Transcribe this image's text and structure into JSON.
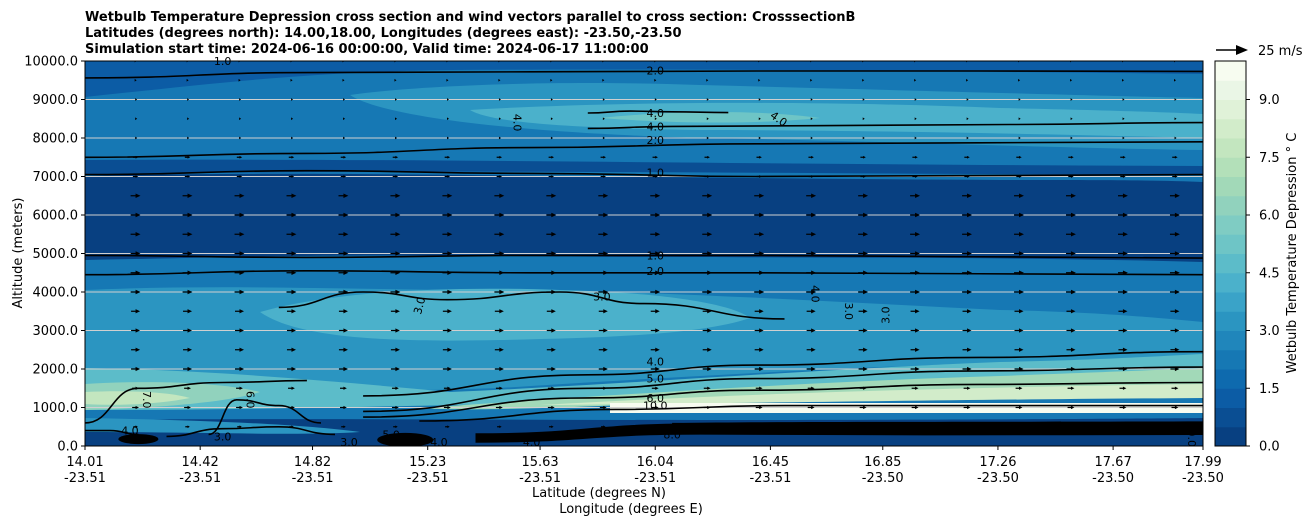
{
  "chart_data": {
    "type": "heatmap",
    "title_lines": [
      "Wetbulb Temperature Depression cross section and wind vectors parallel to cross section: CrosssectionB",
      "Latitudes (degrees north): 14.00,18.00, Longitudes (degrees east): -23.50,-23.50",
      "Simulation start time: 2024-06-16 00:00:00, Valid time: 2024-06-17 11:00:00"
    ],
    "ylabel": "Altitude (meters)",
    "xlabel_lines": [
      "Latitude (degrees N)",
      "Longitude (degrees E)"
    ],
    "ylim": [
      0,
      10000
    ],
    "yticks": [
      0,
      1000,
      2000,
      3000,
      4000,
      5000,
      6000,
      7000,
      8000,
      9000,
      10000
    ],
    "ytick_labels": [
      "0.0",
      "1000.0",
      "2000.0",
      "3000.0",
      "4000.0",
      "5000.0",
      "6000.0",
      "7000.0",
      "8000.0",
      "9000.0",
      "10000.0"
    ],
    "xlim": [
      14.01,
      17.99
    ],
    "xticks": [
      {
        "lat": "14.01",
        "lon": "-23.51"
      },
      {
        "lat": "14.42",
        "lon": "-23.51"
      },
      {
        "lat": "14.82",
        "lon": "-23.51"
      },
      {
        "lat": "15.23",
        "lon": "-23.51"
      },
      {
        "lat": "15.63",
        "lon": "-23.51"
      },
      {
        "lat": "16.04",
        "lon": "-23.51"
      },
      {
        "lat": "16.45",
        "lon": "-23.51"
      },
      {
        "lat": "16.85",
        "lon": "-23.50"
      },
      {
        "lat": "17.26",
        "lon": "-23.50"
      },
      {
        "lat": "17.67",
        "lon": "-23.50"
      },
      {
        "lat": "17.99",
        "lon": "-23.50"
      }
    ],
    "colorbar": {
      "label": "Wetbulb Temperature Depression ° C",
      "range": [
        0,
        10
      ],
      "levels": 20,
      "ticks": [
        "0.0",
        "1.5",
        "3.0",
        "4.5",
        "6.0",
        "7.5",
        "9.0"
      ],
      "colors": [
        "#084081",
        "#0a4e93",
        "#0c5ca5",
        "#0e6aae",
        "#1678b4",
        "#2086bb",
        "#2b95c1",
        "#3aa3c8",
        "#4bb1cb",
        "#5cbcc9",
        "#6ec5c6",
        "#7fccc3",
        "#91d2bd",
        "#a2d9b8",
        "#b3e0b9",
        "#c3e6bf",
        "#d2ecca",
        "#e0f2d8",
        "#eaf6e6",
        "#f7fcf0"
      ]
    },
    "quiver_key": "25 m/s",
    "contours": [
      {
        "label": "2.0",
        "y": [
          9560,
          9700,
          9720,
          9740,
          9740,
          9730
        ],
        "x": [
          14.01,
          14.8,
          15.6,
          16.4,
          17.2,
          17.99
        ]
      },
      {
        "label": "4.0",
        "y": [
          8650,
          8700,
          8680,
          8660
        ],
        "x": [
          15.8,
          15.95,
          16.1,
          16.3
        ]
      },
      {
        "label": "4.0",
        "y": [
          8250,
          8300,
          8320,
          8350,
          8400
        ],
        "x": [
          15.8,
          16.1,
          16.6,
          17.3,
          17.99
        ]
      },
      {
        "label": "2.0",
        "y": [
          7500,
          7600,
          7750,
          7850,
          7900
        ],
        "x": [
          14.01,
          14.8,
          15.6,
          16.4,
          17.99
        ]
      },
      {
        "label": "1.0",
        "y": [
          7050,
          7150,
          7080,
          7000,
          7050
        ],
        "x": [
          14.01,
          14.8,
          15.6,
          16.4,
          17.99
        ]
      },
      {
        "label": "1.0",
        "y": [
          4950,
          4900,
          4950,
          4950,
          4880
        ],
        "x": [
          14.01,
          14.8,
          15.6,
          16.4,
          17.99
        ]
      },
      {
        "label": "2.0",
        "y": [
          4450,
          4550,
          4500,
          4500,
          4450
        ],
        "x": [
          14.01,
          14.8,
          15.6,
          16.4,
          17.99
        ]
      },
      {
        "label": "3.0",
        "y": [
          3600,
          4000,
          3800,
          4000,
          3700,
          3300
        ],
        "x": [
          14.7,
          15.0,
          15.3,
          15.7,
          16.0,
          16.5
        ]
      },
      {
        "label": "4.0",
        "y": [
          1300,
          1850,
          2100,
          2300,
          2450
        ],
        "x": [
          15.0,
          15.8,
          16.4,
          17.2,
          17.99
        ]
      },
      {
        "label": "5.0",
        "y": [
          900,
          1500,
          1750,
          1950,
          2050
        ],
        "x": [
          15.0,
          15.8,
          16.4,
          17.2,
          17.99
        ]
      },
      {
        "label": "6.0",
        "y": [
          750,
          1250,
          1450,
          1600,
          1650
        ],
        "x": [
          15.0,
          15.8,
          16.4,
          17.2,
          17.99
        ]
      },
      {
        "label": "10.0",
        "y": [
          650,
          950,
          1050,
          1050
        ],
        "x": [
          15.2,
          15.9,
          16.5,
          17.99
        ]
      },
      {
        "label": "7.0",
        "y": [
          600,
          1500,
          1650,
          1700
        ],
        "x": [
          14.01,
          14.2,
          14.5,
          14.8
        ]
      },
      {
        "label": "6.0",
        "y": [
          300,
          1200,
          1050,
          600
        ],
        "x": [
          14.45,
          14.55,
          14.7,
          14.85
        ]
      },
      {
        "label": "3.0",
        "y": [
          250,
          450,
          500,
          300
        ],
        "x": [
          14.3,
          14.5,
          14.7,
          14.9
        ]
      },
      {
        "label": "4.0",
        "y": [
          400,
          400,
          300
        ],
        "x": [
          14.01,
          14.1,
          14.2
        ]
      }
    ],
    "inline_labels": [
      {
        "text": "1.0",
        "x": 14.5,
        "y": 10000,
        "rot": 0
      },
      {
        "text": "2.0",
        "x": 16.04,
        "y": 9750,
        "rot": 0
      },
      {
        "text": "4.0",
        "x": 15.55,
        "y": 8400,
        "rot": 90
      },
      {
        "text": "4.0",
        "x": 16.04,
        "y": 8650,
        "rot": 0
      },
      {
        "text": "4.0",
        "x": 16.04,
        "y": 8300,
        "rot": 0
      },
      {
        "text": "4.0",
        "x": 16.48,
        "y": 8500,
        "rot": 35
      },
      {
        "text": "2.0",
        "x": 16.04,
        "y": 7950,
        "rot": 0
      },
      {
        "text": "1.0",
        "x": 16.04,
        "y": 7100,
        "rot": 0
      },
      {
        "text": "1.0",
        "x": 16.04,
        "y": 4950,
        "rot": 0
      },
      {
        "text": "2.0",
        "x": 16.04,
        "y": 4550,
        "rot": 0
      },
      {
        "text": "3.0",
        "x": 15.2,
        "y": 3650,
        "rot": -75
      },
      {
        "text": "3.0",
        "x": 15.85,
        "y": 3880,
        "rot": 0
      },
      {
        "text": "4.0",
        "x": 16.61,
        "y": 3950,
        "rot": 90
      },
      {
        "text": "3.0",
        "x": 16.73,
        "y": 3500,
        "rot": 90
      },
      {
        "text": "3.0",
        "x": 16.86,
        "y": 3400,
        "rot": -90
      },
      {
        "text": "4.0",
        "x": 16.04,
        "y": 2200,
        "rot": 0
      },
      {
        "text": "5.0",
        "x": 16.04,
        "y": 1750,
        "rot": 0
      },
      {
        "text": "6.0",
        "x": 16.04,
        "y": 1250,
        "rot": 0
      },
      {
        "text": "10.0",
        "x": 16.04,
        "y": 1050,
        "rot": 0
      },
      {
        "text": "7.0",
        "x": 14.23,
        "y": 1200,
        "rot": 90
      },
      {
        "text": "6.0",
        "x": 14.6,
        "y": 1200,
        "rot": 90
      },
      {
        "text": "4.0",
        "x": 14.17,
        "y": 400,
        "rot": 0
      },
      {
        "text": "3.0",
        "x": 14.5,
        "y": 250,
        "rot": 0
      },
      {
        "text": "3.0",
        "x": 14.95,
        "y": 100,
        "rot": 0
      },
      {
        "text": "5.0",
        "x": 15.1,
        "y": 300,
        "rot": 0
      },
      {
        "text": "4.0",
        "x": 15.27,
        "y": 100,
        "rot": 0
      },
      {
        "text": "4.0",
        "x": 15.6,
        "y": 100,
        "rot": 0
      },
      {
        "text": "8.0",
        "x": 16.1,
        "y": 300,
        "rot": 0
      },
      {
        "text": "0.0",
        "x": 17.95,
        "y": 200,
        "rot": 90
      }
    ]
  }
}
